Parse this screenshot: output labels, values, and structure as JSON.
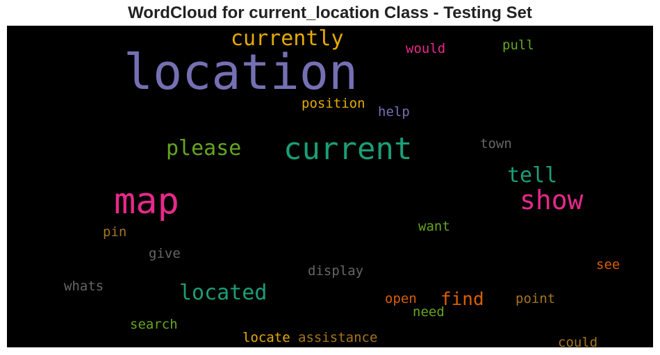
{
  "chart_data": {
    "type": "wordcloud",
    "title": "WordCloud for current_location Class - Testing Set",
    "background": "#000000",
    "palette": "Dark2",
    "words": [
      {
        "text": "location",
        "weight": 1.0,
        "color": "#7570b3"
      },
      {
        "text": "current",
        "weight": 0.62,
        "color": "#1b9e77"
      },
      {
        "text": "map",
        "weight": 0.72,
        "color": "#e7298a"
      },
      {
        "text": "show",
        "weight": 0.55,
        "color": "#e7298a"
      },
      {
        "text": "currently",
        "weight": 0.45,
        "color": "#e6ab02"
      },
      {
        "text": "please",
        "weight": 0.45,
        "color": "#66a61e"
      },
      {
        "text": "tell",
        "weight": 0.45,
        "color": "#1b9e77"
      },
      {
        "text": "located",
        "weight": 0.45,
        "color": "#1b9e77"
      },
      {
        "text": "find",
        "weight": 0.4,
        "color": "#d95f02"
      },
      {
        "text": "position",
        "weight": 0.28,
        "color": "#e6ab02"
      },
      {
        "text": "would",
        "weight": 0.28,
        "color": "#e7298a"
      },
      {
        "text": "pull",
        "weight": 0.28,
        "color": "#66a61e"
      },
      {
        "text": "help",
        "weight": 0.28,
        "color": "#7570b3"
      },
      {
        "text": "town",
        "weight": 0.28,
        "color": "#666666"
      },
      {
        "text": "pin",
        "weight": 0.28,
        "color": "#a6761d"
      },
      {
        "text": "want",
        "weight": 0.28,
        "color": "#66a61e"
      },
      {
        "text": "give",
        "weight": 0.28,
        "color": "#666666"
      },
      {
        "text": "display",
        "weight": 0.28,
        "color": "#666666"
      },
      {
        "text": "see",
        "weight": 0.28,
        "color": "#d95f02"
      },
      {
        "text": "whats",
        "weight": 0.28,
        "color": "#666666"
      },
      {
        "text": "open",
        "weight": 0.28,
        "color": "#d95f02"
      },
      {
        "text": "point",
        "weight": 0.28,
        "color": "#a6761d"
      },
      {
        "text": "need",
        "weight": 0.28,
        "color": "#66a61e"
      },
      {
        "text": "search",
        "weight": 0.28,
        "color": "#66a61e"
      },
      {
        "text": "locate",
        "weight": 0.28,
        "color": "#e6ab02"
      },
      {
        "text": "assistance",
        "weight": 0.28,
        "color": "#a6761d"
      },
      {
        "text": "could",
        "weight": 0.28,
        "color": "#a6761d"
      }
    ]
  }
}
